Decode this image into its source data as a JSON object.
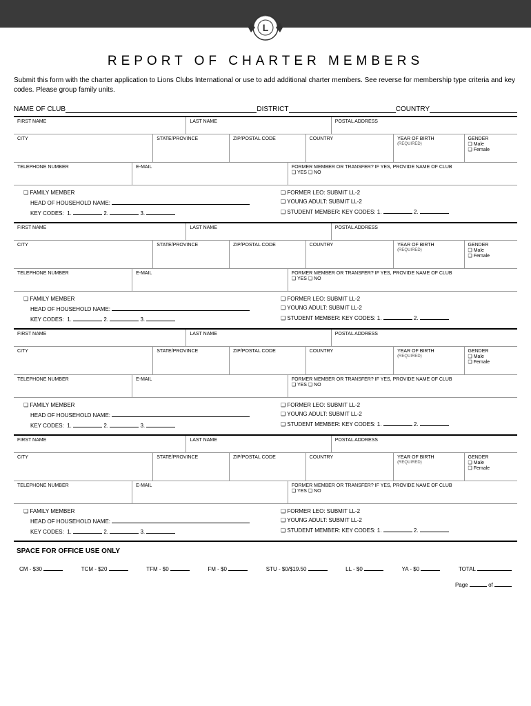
{
  "header": {
    "title": "REPORT OF CHARTER MEMBERS",
    "instructions": "Submit this form with the charter application to Lions Clubs International or use to add additional charter members. See reverse for membership type criteria and key codes. Please group family units."
  },
  "topFields": {
    "clubLabel": "NAME OF CLUB",
    "districtLabel": "DISTRICT",
    "countryLabel": "COUNTRY"
  },
  "memberLabels": {
    "firstName": "FIRST NAME",
    "lastName": "LAST NAME",
    "postalAddress": "POSTAL ADDRESS",
    "city": "CITY",
    "stateProvince": "STATE/PROVINCE",
    "zipPostal": "ZIP/POSTAL CODE",
    "country": "COUNTRY",
    "yearOfBirth": "YEAR OF BIRTH",
    "yearOfBirthSub": "(REQUIRED)",
    "gender": "GENDER",
    "genderMale": "❏ Male",
    "genderFemale": "❏ Female",
    "telephone": "TELEPHONE NUMBER",
    "email": "E-MAIL",
    "formerMember": "FORMER MEMBER OR TRANSFER? IF YES, PROVIDE NAME OF CLUB",
    "yesNo": "❏ YES  ❏ NO",
    "familyMember": "❏ FAMILY MEMBER",
    "headOfHousehold": "HEAD OF HOUSEHOLD NAME:",
    "keyCodes": "KEY CODES:",
    "kc1": "1.",
    "kc2": "2.",
    "kc3": "3.",
    "formerLeo": "❏ FORMER LEO: SUBMIT LL-2",
    "youngAdult": "❏ YOUNG ADULT: SUBMIT LL-2",
    "studentMember": "❏ STUDENT MEMBER: KEY CODES:",
    "sm1": "1.",
    "sm2": "2."
  },
  "office": {
    "title": "SPACE FOR OFFICE USE ONLY",
    "cm": "CM - $30",
    "tcm": "TCM - $20",
    "tfm": "TFM - $0",
    "fm": "FM - $0",
    "stu": "STU - $0/$19.50",
    "ll": "LL - $0",
    "ya": "YA - $0",
    "total": "TOTAL",
    "page": "Page",
    "of": "of"
  }
}
